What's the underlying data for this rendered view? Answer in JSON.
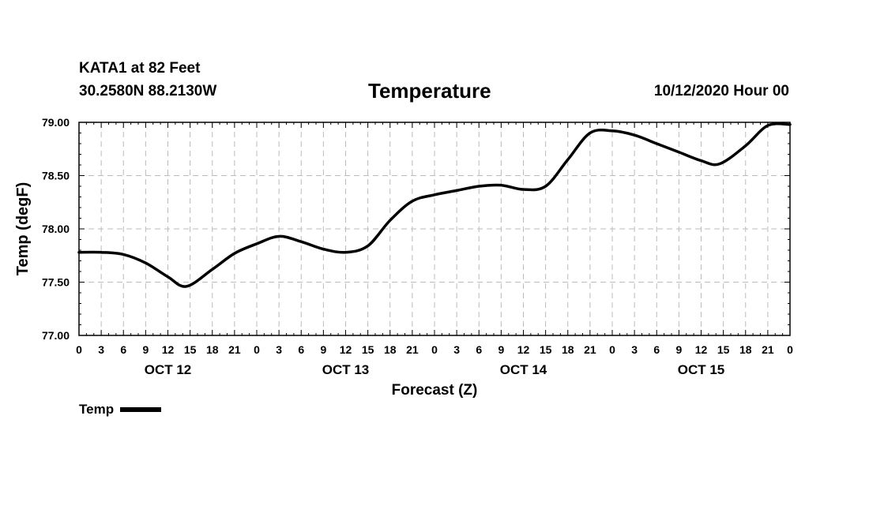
{
  "header": {
    "station": "KATA1 at 82 Feet",
    "coords": "30.2580N 88.2130W",
    "title": "Temperature",
    "runtime": "10/12/2020 Hour 00"
  },
  "legend": {
    "label": "Temp",
    "color": "#000000"
  },
  "chart_data": {
    "type": "line",
    "title": "Temperature",
    "xlabel": "Forecast (Z)",
    "ylabel": "Temp (degF)",
    "xlim": [
      0,
      96
    ],
    "ylim": [
      77.0,
      79.0
    ],
    "yticks": [
      "77.00",
      "77.50",
      "78.00",
      "78.50",
      "79.00"
    ],
    "yticks_values": [
      77.0,
      77.5,
      78.0,
      78.5,
      79.0
    ],
    "xtick_hours": [
      0,
      3,
      6,
      9,
      12,
      15,
      18,
      21,
      24,
      27,
      30,
      33,
      36,
      39,
      42,
      45,
      48,
      51,
      54,
      57,
      60,
      63,
      66,
      69,
      72,
      75,
      78,
      81,
      84,
      87,
      90,
      93,
      96
    ],
    "xtick_labels": [
      "0",
      "3",
      "6",
      "9",
      "12",
      "15",
      "18",
      "21",
      "0",
      "3",
      "6",
      "9",
      "12",
      "15",
      "18",
      "21",
      "0",
      "3",
      "6",
      "9",
      "12",
      "15",
      "18",
      "21",
      "0",
      "3",
      "6",
      "9",
      "12",
      "15",
      "18",
      "21",
      "0"
    ],
    "day_labels": [
      {
        "label": "OCT 12",
        "hour": 12
      },
      {
        "label": "OCT 13",
        "hour": 36
      },
      {
        "label": "OCT 14",
        "hour": 60
      },
      {
        "label": "OCT 15",
        "hour": 84
      }
    ],
    "grid": true,
    "legend_position": "bottom-left",
    "series": [
      {
        "name": "Temp",
        "x": [
          0,
          3,
          6,
          9,
          12,
          14.5,
          18,
          21,
          24,
          27,
          30,
          33,
          36,
          39,
          42,
          45,
          48,
          51,
          54,
          57,
          60,
          63,
          66,
          69,
          72,
          75,
          78,
          81,
          84,
          86.5,
          90,
          93,
          96
        ],
        "y": [
          77.78,
          77.78,
          77.76,
          77.68,
          77.55,
          77.46,
          77.62,
          77.77,
          77.86,
          77.93,
          77.88,
          77.81,
          77.78,
          77.84,
          78.08,
          78.26,
          78.32,
          78.36,
          78.4,
          78.41,
          78.37,
          78.4,
          78.65,
          78.9,
          78.92,
          78.88,
          78.8,
          78.72,
          78.64,
          78.61,
          78.78,
          78.97,
          78.98
        ]
      }
    ]
  }
}
